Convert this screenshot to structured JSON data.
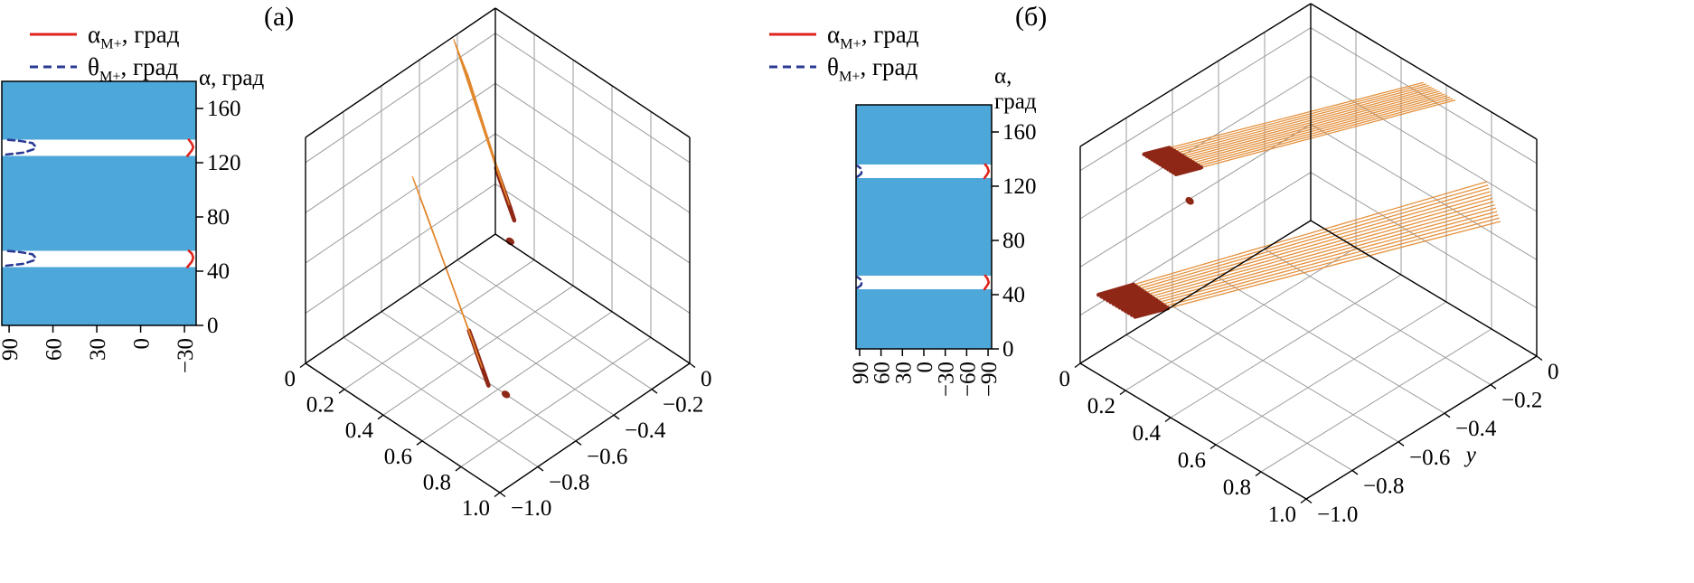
{
  "figure": {
    "background": "#ffffff"
  },
  "chart_data": [
    {
      "type": "surface-wireframe-with-projection",
      "panel_label": "(а)",
      "legend": [
        {
          "style": "solid",
          "color": "#e0231c",
          "sym": "α",
          "sub": "M+",
          "unit": ", град"
        },
        {
          "style": "dashed",
          "color": "#2b3b94",
          "sym": "θ",
          "sub": "M+",
          "unit": ", град"
        }
      ],
      "projection_2d": {
        "title_lines": [
          "α, град"
        ],
        "x_ticks": [
          {
            "v": 90,
            "label": "90"
          },
          {
            "v": 60,
            "label": "60"
          },
          {
            "v": 30,
            "label": "30"
          },
          {
            "v": 0,
            "label": "0"
          },
          {
            "v": -30,
            "label": "−30"
          }
        ],
        "x_range": [
          95,
          -38
        ],
        "y_ticks": [
          {
            "v": 0,
            "label": "0"
          },
          {
            "v": 40,
            "label": "40"
          },
          {
            "v": 80,
            "label": "80"
          },
          {
            "v": 120,
            "label": "120"
          },
          {
            "v": 160,
            "label": "160"
          }
        ],
        "y_range": [
          0,
          180
        ],
        "band_color": "#4ea7d9",
        "alpha_color": "#e0231c",
        "theta_color": "#2b3b94",
        "blue_bands": [
          [
            0,
            43
          ],
          [
            55,
            125
          ],
          [
            137,
            180
          ]
        ],
        "alpha_curves": [
          [
            [
              -32,
              43
            ],
            [
              -35,
              47
            ],
            [
              -36,
              50
            ],
            [
              -35,
              53
            ],
            [
              -33,
              55
            ]
          ],
          [
            [
              -32,
              125
            ],
            [
              -35,
              129
            ],
            [
              -36,
              131.5
            ],
            [
              -35,
              134
            ],
            [
              -33,
              137
            ]
          ]
        ],
        "theta_curves": [
          [
            [
              92,
              44
            ],
            [
              80,
              45.5
            ],
            [
              73,
              48
            ],
            [
              72,
              50
            ],
            [
              74,
              52.5
            ],
            [
              82,
              54
            ],
            [
              92,
              55
            ]
          ],
          [
            [
              92,
              126
            ],
            [
              80,
              127.5
            ],
            [
              73,
              130
            ],
            [
              72,
              132
            ],
            [
              74,
              134.5
            ],
            [
              82,
              136
            ],
            [
              92,
              137
            ]
          ]
        ]
      },
      "surface_3d": {
        "x_ticks": [
          {
            "v": 0,
            "label": "0"
          },
          {
            "v": 0.2,
            "label": "0.2"
          },
          {
            "v": 0.4,
            "label": "0.4"
          },
          {
            "v": 0.6,
            "label": "0.6"
          },
          {
            "v": 0.8,
            "label": "0.8"
          },
          {
            "v": 1,
            "label": "1.0"
          }
        ],
        "y_ticks": [
          {
            "v": 0,
            "label": "0"
          },
          {
            "v": -0.2,
            "label": "−0.2"
          },
          {
            "v": -0.4,
            "label": "−0.4"
          },
          {
            "v": -0.6,
            "label": "−0.6"
          },
          {
            "v": -0.8,
            "label": "−0.8"
          },
          {
            "v": -1,
            "label": "−1.0"
          }
        ],
        "x_range": [
          0,
          1
        ],
        "y_range": [
          0,
          -1
        ],
        "z_range": [
          0,
          180
        ],
        "z_grid": [
          40,
          80,
          120,
          160
        ],
        "y_axis_label": "",
        "wire_color": "#e2882e",
        "cap_color": "#8f2717",
        "grid_color": "#9b9b9b",
        "ribbons": [
          {
            "lines": 13,
            "T0": [
              0.0,
              -0.22,
              178
            ],
            "T1": [
              0.15,
              -0.3,
              174
            ],
            "B0": [
              0.24,
              -0.22,
              90
            ],
            "B1": [
              0.39,
              -0.3,
              82
            ]
          },
          {
            "lines": 13,
            "T0": [
              0.12,
              -0.56,
              116
            ],
            "T1": [
              0.27,
              -0.64,
              110
            ],
            "B0": [
              0.44,
              -0.56,
              14
            ],
            "B1": [
              0.59,
              -0.64,
              6
            ]
          }
        ],
        "dots": [
          [
            0.33,
            -0.26,
            55
          ],
          [
            0.64,
            -0.6,
            0
          ]
        ]
      }
    },
    {
      "type": "surface-wireframe-with-projection",
      "panel_label": "(б)",
      "legend": [
        {
          "style": "solid",
          "color": "#e0231c",
          "sym": "α",
          "sub": "M+",
          "unit": ", град"
        },
        {
          "style": "dashed",
          "color": "#2b3b94",
          "sym": "θ",
          "sub": "M+",
          "unit": ", град"
        }
      ],
      "projection_2d": {
        "title_lines": [
          "α,",
          "град"
        ],
        "x_ticks": [
          {
            "v": 90,
            "label": "90"
          },
          {
            "v": 60,
            "label": "60"
          },
          {
            "v": 30,
            "label": "30"
          },
          {
            "v": 0,
            "label": "0"
          },
          {
            "v": -30,
            "label": "−30"
          },
          {
            "v": -60,
            "label": "−60"
          },
          {
            "v": -90,
            "label": "−90"
          }
        ],
        "x_range": [
          95,
          -95
        ],
        "y_ticks": [
          {
            "v": 0,
            "label": "0"
          },
          {
            "v": 40,
            "label": "40"
          },
          {
            "v": 80,
            "label": "80"
          },
          {
            "v": 120,
            "label": "120"
          },
          {
            "v": 160,
            "label": "160"
          }
        ],
        "y_range": [
          0,
          180
        ],
        "band_color": "#4ea7d9",
        "alpha_color": "#e0231c",
        "theta_color": "#2b3b94",
        "blue_bands": [
          [
            0,
            44
          ],
          [
            54,
            126
          ],
          [
            136,
            180
          ]
        ],
        "alpha_curves": [
          [
            [
              -85,
              44
            ],
            [
              -89,
              47
            ],
            [
              -91,
              49
            ],
            [
              -89,
              52
            ],
            [
              -86,
              54
            ]
          ],
          [
            [
              -85,
              126
            ],
            [
              -89,
              129
            ],
            [
              -91,
              131
            ],
            [
              -89,
              134
            ],
            [
              -86,
              136
            ]
          ]
        ],
        "theta_curves": [
          [
            [
              93,
              45
            ],
            [
              88,
              47
            ],
            [
              87,
              49
            ],
            [
              88,
              51
            ],
            [
              93,
              53
            ]
          ],
          [
            [
              93,
              127
            ],
            [
              88,
              129
            ],
            [
              87,
              131
            ],
            [
              88,
              133
            ],
            [
              93,
              135
            ]
          ]
        ]
      },
      "surface_3d": {
        "x_ticks": [
          {
            "v": 0,
            "label": "0"
          },
          {
            "v": 0.2,
            "label": "0.2"
          },
          {
            "v": 0.4,
            "label": "0.4"
          },
          {
            "v": 0.6,
            "label": "0.6"
          },
          {
            "v": 0.8,
            "label": "0.8"
          },
          {
            "v": 1,
            "label": "1.0"
          }
        ],
        "y_ticks": [
          {
            "v": 0,
            "label": "0"
          },
          {
            "v": -0.2,
            "label": "−0.2"
          },
          {
            "v": -0.4,
            "label": "−0.4"
          },
          {
            "v": -0.6,
            "label": "−0.6"
          },
          {
            "v": -0.8,
            "label": "−0.8"
          },
          {
            "v": -1,
            "label": "−1.0"
          }
        ],
        "x_range": [
          0,
          1
        ],
        "y_range": [
          0,
          -1
        ],
        "z_range": [
          0,
          180
        ],
        "z_grid": [
          40,
          80,
          120,
          160
        ],
        "y_axis_label": "y",
        "wire_color": "#e2882e",
        "cap_color": "#8f2717",
        "grid_color": "#9b9b9b",
        "ribbons": [
          {
            "lines": 13,
            "T0": [
              0.54,
              -0.04,
              180
            ],
            "T1": [
              0.64,
              0.0,
              172
            ],
            "B0": [
              0.12,
              -0.84,
              168
            ],
            "B1": [
              0.22,
              -0.8,
              158
            ]
          },
          {
            "lines": 13,
            "T0": [
              0.78,
              0.0,
              120
            ],
            "T1": [
              0.88,
              -0.04,
              103
            ],
            "B0": [
              0.02,
              -0.94,
              52
            ],
            "B1": [
              0.12,
              -0.88,
              38
            ]
          }
        ],
        "dots": [
          [
            0.26,
            -0.78,
            138
          ]
        ]
      }
    }
  ]
}
